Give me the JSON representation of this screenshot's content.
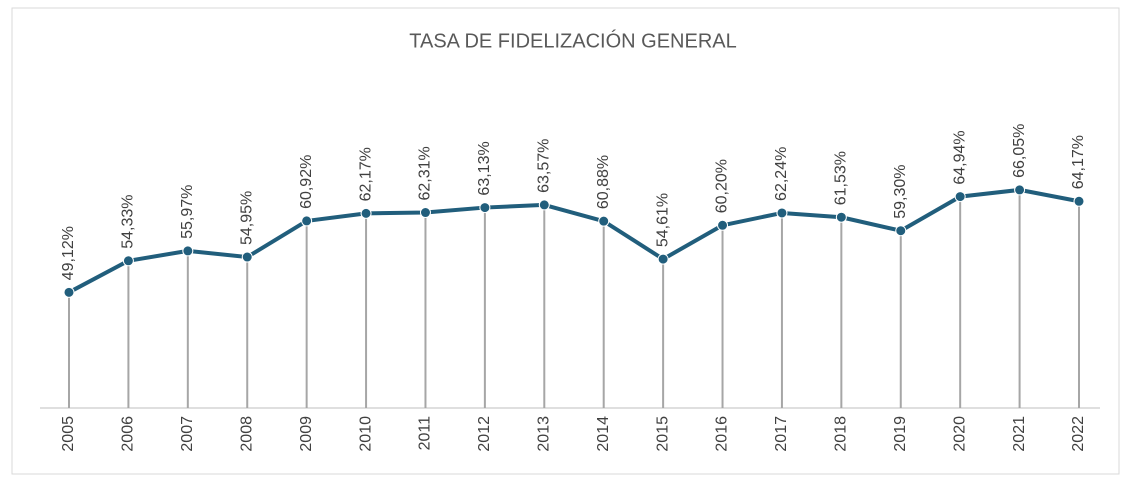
{
  "chart_data": {
    "type": "line",
    "title": "TASA DE FIDELIZACIÓN GENERAL",
    "categories": [
      "2005",
      "2006",
      "2007",
      "2008",
      "2009",
      "2010",
      "2011",
      "2012",
      "2013",
      "2014",
      "2015",
      "2016",
      "2017",
      "2018",
      "2019",
      "2020",
      "2021",
      "2022"
    ],
    "series": [
      {
        "name": "Tasa de fidelización",
        "color": "#215e7c",
        "values": [
          49.12,
          54.33,
          55.97,
          54.95,
          60.92,
          62.17,
          62.31,
          63.13,
          63.57,
          60.88,
          54.61,
          60.2,
          62.24,
          61.53,
          59.3,
          64.94,
          66.05,
          64.17
        ],
        "value_labels": [
          "49,12%",
          "54,33%",
          "55,97%",
          "54,95%",
          "60,92%",
          "62,17%",
          "62,31%",
          "63,13%",
          "63,57%",
          "60,88%",
          "54,61%",
          "60,20%",
          "62,24%",
          "61,53%",
          "59,30%",
          "64,94%",
          "66,05%",
          "64,17%"
        ]
      }
    ],
    "ylim": [
      30,
      70
    ],
    "drop_lines": true
  }
}
